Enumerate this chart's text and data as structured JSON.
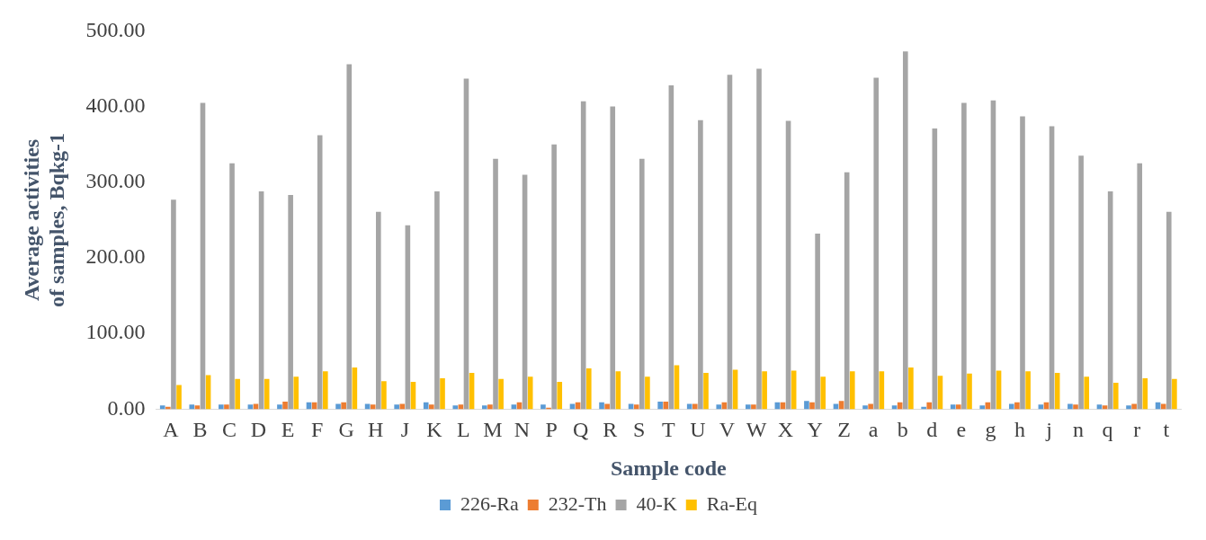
{
  "chart_data": {
    "type": "bar",
    "xlabel": "Sample code",
    "ylabel": "Average activities of samples, Bqkg-1",
    "categories": [
      "A",
      "B",
      "C",
      "D",
      "E",
      "F",
      "G",
      "H",
      "J",
      "K",
      "L",
      "M",
      "N",
      "P",
      "Q",
      "R",
      "S",
      "T",
      "U",
      "V",
      "W",
      "X",
      "Y",
      "Z",
      "a",
      "b",
      "d",
      "e",
      "g",
      "h",
      "j",
      "n",
      "q",
      "r",
      "t"
    ],
    "series": [
      {
        "name": "226-Ra",
        "color": "#5b9bd5",
        "values": [
          5,
          6,
          6,
          6,
          6,
          9,
          7,
          7,
          6,
          9,
          5,
          5,
          6,
          6,
          7,
          9,
          7,
          10,
          7,
          6,
          6,
          9,
          11,
          7,
          5,
          5,
          3,
          6,
          5,
          7,
          6,
          7,
          6,
          5,
          9
        ]
      },
      {
        "name": "232-Th",
        "color": "#ed7d31",
        "values": [
          3,
          5,
          6,
          7,
          10,
          9,
          9,
          6,
          7,
          6,
          6,
          6,
          9,
          2,
          9,
          7,
          6,
          10,
          7,
          9,
          6,
          9,
          9,
          11,
          7,
          9,
          9,
          6,
          9,
          9,
          9,
          6,
          5,
          7,
          7
        ]
      },
      {
        "name": "40-K",
        "color": "#a5a5a5",
        "values": [
          277,
          405,
          325,
          288,
          283,
          362,
          456,
          261,
          243,
          288,
          437,
          331,
          310,
          350,
          407,
          400,
          331,
          428,
          382,
          442,
          450,
          381,
          232,
          313,
          438,
          473,
          371,
          405,
          408,
          387,
          374,
          335,
          288,
          325,
          261
        ]
      },
      {
        "name": "Ra-Eq",
        "color": "#ffc000",
        "values": [
          32,
          45,
          40,
          40,
          43,
          50,
          55,
          37,
          36,
          41,
          48,
          40,
          43,
          36,
          54,
          50,
          43,
          58,
          48,
          52,
          50,
          51,
          43,
          50,
          50,
          55,
          44,
          47,
          51,
          50,
          48,
          43,
          35,
          41,
          40
        ]
      }
    ],
    "ylim": [
      0,
      500
    ],
    "yticks": [
      {
        "value": 0,
        "label": "0.00"
      },
      {
        "value": 100,
        "label": "100.00"
      },
      {
        "value": 200,
        "label": "200.00"
      },
      {
        "value": 300,
        "label": "300.00"
      },
      {
        "value": 400,
        "label": "400.00"
      },
      {
        "value": 500,
        "label": "500.00"
      }
    ],
    "grid": false,
    "legend": "bottom"
  }
}
